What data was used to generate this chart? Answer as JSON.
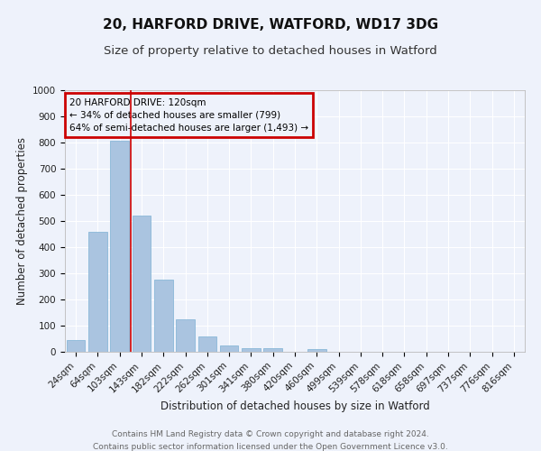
{
  "title1": "20, HARFORD DRIVE, WATFORD, WD17 3DG",
  "title2": "Size of property relative to detached houses in Watford",
  "xlabel": "Distribution of detached houses by size in Watford",
  "ylabel": "Number of detached properties",
  "categories": [
    "24sqm",
    "64sqm",
    "103sqm",
    "143sqm",
    "182sqm",
    "222sqm",
    "262sqm",
    "301sqm",
    "341sqm",
    "380sqm",
    "420sqm",
    "460sqm",
    "499sqm",
    "539sqm",
    "578sqm",
    "618sqm",
    "658sqm",
    "697sqm",
    "737sqm",
    "776sqm",
    "816sqm"
  ],
  "values": [
    46,
    460,
    808,
    520,
    275,
    125,
    60,
    25,
    14,
    14,
    0,
    10,
    0,
    0,
    0,
    0,
    0,
    0,
    0,
    0,
    0
  ],
  "bar_color": "#aac4e0",
  "bar_edge_color": "#8ab8d8",
  "highlight_color": "#cc0000",
  "property_line_x": 2.5,
  "annotation_text": "20 HARFORD DRIVE: 120sqm\n← 34% of detached houses are smaller (799)\n64% of semi-detached houses are larger (1,493) →",
  "annotation_box_color": "#cc0000",
  "ylim": [
    0,
    1000
  ],
  "yticks": [
    0,
    100,
    200,
    300,
    400,
    500,
    600,
    700,
    800,
    900,
    1000
  ],
  "footer1": "Contains HM Land Registry data © Crown copyright and database right 2024.",
  "footer2": "Contains public sector information licensed under the Open Government Licence v3.0.",
  "background_color": "#eef2fb",
  "grid_color": "#ffffff",
  "title_fontsize": 11,
  "subtitle_fontsize": 9.5,
  "axis_label_fontsize": 8.5,
  "tick_fontsize": 7.5,
  "footer_fontsize": 6.5,
  "annotation_fontsize": 7.5
}
